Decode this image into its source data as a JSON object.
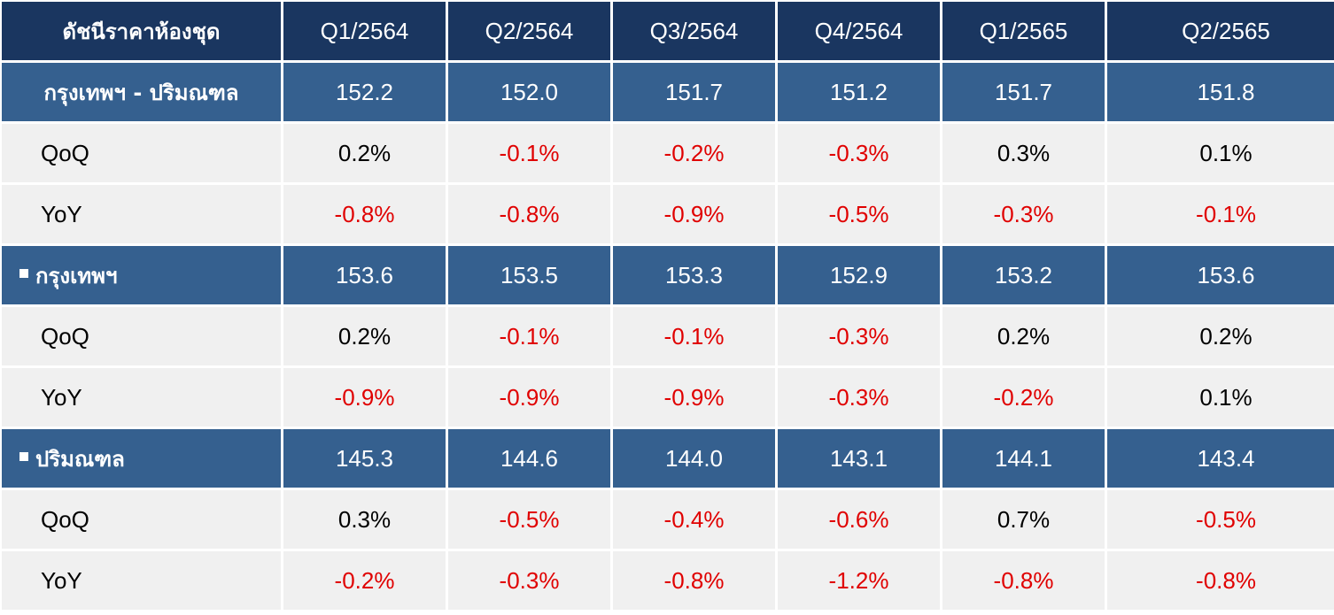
{
  "chart_data": {
    "type": "table",
    "header": "ดัชนีราคาห้องชุด",
    "columns": [
      "Q1/2564",
      "Q2/2564",
      "Q3/2564",
      "Q4/2564",
      "Q1/2565",
      "Q2/2565"
    ],
    "groups": [
      {
        "label": "กรุงเทพฯ - ปริมณฑล",
        "bullet": false,
        "index": [
          "152.2",
          "152.0",
          "151.7",
          "151.2",
          "151.7",
          "151.8"
        ],
        "qoq_label": "QoQ",
        "qoq": [
          "0.2%",
          "-0.1%",
          "-0.2%",
          "-0.3%",
          "0.3%",
          "0.1%"
        ],
        "yoy_label": "YoY",
        "yoy": [
          "-0.8%",
          "-0.8%",
          "-0.9%",
          "-0.5%",
          "-0.3%",
          "-0.1%"
        ]
      },
      {
        "label": "กรุงเทพฯ",
        "bullet": true,
        "index": [
          "153.6",
          "153.5",
          "153.3",
          "152.9",
          "153.2",
          "153.6"
        ],
        "qoq_label": "QoQ",
        "qoq": [
          "0.2%",
          "-0.1%",
          "-0.1%",
          "-0.3%",
          "0.2%",
          "0.2%"
        ],
        "yoy_label": "YoY",
        "yoy": [
          "-0.9%",
          "-0.9%",
          "-0.9%",
          "-0.3%",
          "-0.2%",
          "0.1%"
        ]
      },
      {
        "label": "ปริมณฑล",
        "bullet": true,
        "index": [
          "145.3",
          "144.6",
          "144.0",
          "143.1",
          "144.1",
          "143.4"
        ],
        "qoq_label": "QoQ",
        "qoq": [
          "0.3%",
          "-0.5%",
          "-0.4%",
          "-0.6%",
          "0.7%",
          "-0.5%"
        ],
        "yoy_label": "YoY",
        "yoy": [
          "-0.2%",
          "-0.3%",
          "-0.8%",
          "-1.2%",
          "-0.8%",
          "-0.8%"
        ]
      }
    ]
  },
  "colors": {
    "header_bg": "#1a3660",
    "group_bg": "#35608f",
    "metric_bg": "#f0f0f0",
    "negative": "#e00000",
    "positive": "#000000"
  }
}
